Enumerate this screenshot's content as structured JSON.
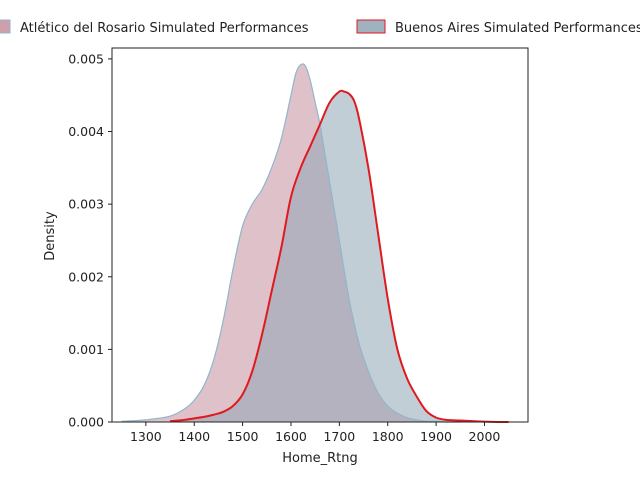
{
  "chart_data": {
    "type": "area",
    "title": "",
    "xlabel": "Home_Rtng",
    "ylabel": "Density",
    "xlim": [
      1230,
      2090
    ],
    "ylim": [
      0,
      0.00515
    ],
    "xticks": [
      1300,
      1400,
      1500,
      1600,
      1700,
      1800,
      1900,
      2000
    ],
    "yticks": [
      0.0,
      0.001,
      0.002,
      0.003,
      0.004,
      0.005
    ],
    "ytick_labels": [
      "0.000",
      "0.001",
      "0.002",
      "0.003",
      "0.004",
      "0.005"
    ],
    "legend_position": "top",
    "grid": false,
    "series": [
      {
        "name": "Atlético del Rosario Simulated Performances",
        "fill": "#c48f9d",
        "fill_opacity": 0.55,
        "stroke": "#8fb6cc",
        "x": [
          1250,
          1300,
          1350,
          1380,
          1400,
          1420,
          1440,
          1460,
          1480,
          1500,
          1520,
          1540,
          1560,
          1580,
          1600,
          1610,
          1620,
          1630,
          1640,
          1650,
          1660,
          1670,
          1680,
          1700,
          1720,
          1740,
          1760,
          1780,
          1800,
          1820,
          1840,
          1860,
          1880,
          1900,
          1920,
          1950
        ],
        "y": [
          1e-05,
          3e-05,
          8e-05,
          0.00018,
          0.0003,
          0.0005,
          0.00085,
          0.0014,
          0.0021,
          0.0027,
          0.003,
          0.0032,
          0.0035,
          0.0039,
          0.0045,
          0.0048,
          0.00492,
          0.0049,
          0.0047,
          0.0044,
          0.0041,
          0.0037,
          0.0033,
          0.0025,
          0.0017,
          0.0011,
          0.0007,
          0.0004,
          0.00022,
          0.00012,
          6e-05,
          3e-05,
          1e-05,
          1e-05,
          0,
          0
        ]
      },
      {
        "name": "Buenos Aires Simulated Performances",
        "fill": "#8fa5b5",
        "fill_opacity": 0.55,
        "stroke": "#e0191f",
        "x": [
          1350,
          1380,
          1400,
          1420,
          1440,
          1460,
          1480,
          1500,
          1520,
          1540,
          1560,
          1580,
          1600,
          1620,
          1640,
          1660,
          1680,
          1700,
          1710,
          1720,
          1730,
          1740,
          1760,
          1780,
          1800,
          1820,
          1840,
          1860,
          1880,
          1900,
          1920,
          1950,
          1980,
          2000,
          2030,
          2050
        ],
        "y": [
          1e-05,
          3e-05,
          5e-05,
          7e-05,
          0.0001,
          0.00014,
          0.00022,
          0.00038,
          0.0007,
          0.0012,
          0.0018,
          0.0024,
          0.0031,
          0.0035,
          0.0038,
          0.0041,
          0.0044,
          0.00455,
          0.00455,
          0.00452,
          0.00443,
          0.0042,
          0.0035,
          0.0026,
          0.0017,
          0.001,
          0.0006,
          0.00035,
          0.00015,
          6e-05,
          3e-05,
          2e-05,
          1e-05,
          5e-06,
          0,
          0
        ]
      }
    ]
  }
}
